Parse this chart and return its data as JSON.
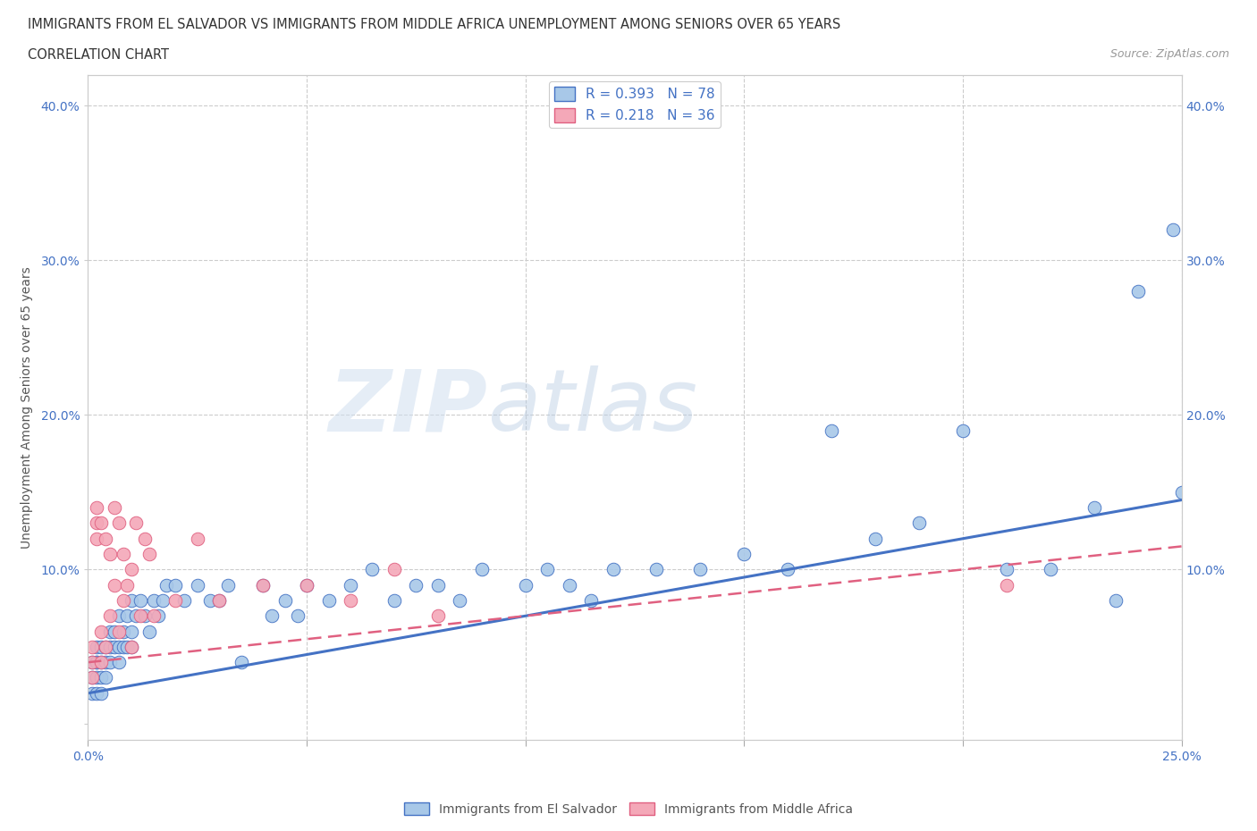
{
  "title_line1": "IMMIGRANTS FROM EL SALVADOR VS IMMIGRANTS FROM MIDDLE AFRICA UNEMPLOYMENT AMONG SENIORS OVER 65 YEARS",
  "title_line2": "CORRELATION CHART",
  "source_text": "Source: ZipAtlas.com",
  "ylabel": "Unemployment Among Seniors over 65 years",
  "xlim": [
    0.0,
    0.25
  ],
  "ylim": [
    -0.01,
    0.42
  ],
  "color_blue": "#a8c8e8",
  "color_pink": "#f4a8b8",
  "line_blue": "#4472c4",
  "line_pink": "#e06080",
  "R_blue": 0.393,
  "N_blue": 78,
  "R_pink": 0.218,
  "N_pink": 36,
  "legend_label_blue": "Immigrants from El Salvador",
  "legend_label_pink": "Immigrants from Middle Africa",
  "watermark_zip": "ZIP",
  "watermark_atlas": "atlas",
  "blue_x": [
    0.001,
    0.001,
    0.001,
    0.002,
    0.002,
    0.002,
    0.002,
    0.002,
    0.003,
    0.003,
    0.003,
    0.003,
    0.004,
    0.004,
    0.004,
    0.005,
    0.005,
    0.005,
    0.006,
    0.006,
    0.007,
    0.007,
    0.007,
    0.008,
    0.008,
    0.009,
    0.009,
    0.01,
    0.01,
    0.01,
    0.011,
    0.012,
    0.013,
    0.014,
    0.015,
    0.016,
    0.017,
    0.018,
    0.02,
    0.022,
    0.025,
    0.028,
    0.03,
    0.032,
    0.035,
    0.04,
    0.042,
    0.045,
    0.048,
    0.05,
    0.055,
    0.06,
    0.065,
    0.07,
    0.075,
    0.08,
    0.085,
    0.09,
    0.1,
    0.105,
    0.11,
    0.115,
    0.12,
    0.13,
    0.14,
    0.15,
    0.16,
    0.17,
    0.18,
    0.19,
    0.2,
    0.21,
    0.22,
    0.23,
    0.24,
    0.248,
    0.25,
    0.235
  ],
  "blue_y": [
    0.04,
    0.03,
    0.02,
    0.05,
    0.04,
    0.03,
    0.02,
    0.04,
    0.05,
    0.03,
    0.04,
    0.02,
    0.05,
    0.04,
    0.03,
    0.06,
    0.05,
    0.04,
    0.06,
    0.05,
    0.07,
    0.05,
    0.04,
    0.06,
    0.05,
    0.07,
    0.05,
    0.08,
    0.06,
    0.05,
    0.07,
    0.08,
    0.07,
    0.06,
    0.08,
    0.07,
    0.08,
    0.09,
    0.09,
    0.08,
    0.09,
    0.08,
    0.08,
    0.09,
    0.04,
    0.09,
    0.07,
    0.08,
    0.07,
    0.09,
    0.08,
    0.09,
    0.1,
    0.08,
    0.09,
    0.09,
    0.08,
    0.1,
    0.09,
    0.1,
    0.09,
    0.08,
    0.1,
    0.1,
    0.1,
    0.11,
    0.1,
    0.19,
    0.12,
    0.13,
    0.19,
    0.1,
    0.1,
    0.14,
    0.28,
    0.32,
    0.15,
    0.08
  ],
  "pink_x": [
    0.001,
    0.001,
    0.001,
    0.002,
    0.002,
    0.002,
    0.003,
    0.003,
    0.003,
    0.004,
    0.004,
    0.005,
    0.005,
    0.006,
    0.006,
    0.007,
    0.007,
    0.008,
    0.008,
    0.009,
    0.01,
    0.01,
    0.011,
    0.012,
    0.013,
    0.014,
    0.015,
    0.02,
    0.025,
    0.03,
    0.04,
    0.05,
    0.06,
    0.07,
    0.08,
    0.21
  ],
  "pink_y": [
    0.04,
    0.03,
    0.05,
    0.13,
    0.12,
    0.14,
    0.04,
    0.06,
    0.13,
    0.12,
    0.05,
    0.11,
    0.07,
    0.14,
    0.09,
    0.13,
    0.06,
    0.11,
    0.08,
    0.09,
    0.1,
    0.05,
    0.13,
    0.07,
    0.12,
    0.11,
    0.07,
    0.08,
    0.12,
    0.08,
    0.09,
    0.09,
    0.08,
    0.1,
    0.07,
    0.09
  ],
  "blue_trendline_x": [
    0.0,
    0.25
  ],
  "blue_trendline_y": [
    0.02,
    0.145
  ],
  "pink_trendline_x": [
    0.0,
    0.25
  ],
  "pink_trendline_y": [
    0.04,
    0.115
  ]
}
